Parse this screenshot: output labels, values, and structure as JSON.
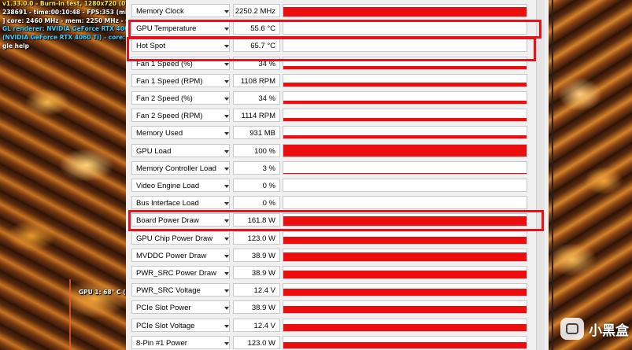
{
  "overlay": {
    "lines": [
      {
        "text": "v1.33.0.0 - Burn-in test, 1280x720 (0X MS",
        "color": "yellow"
      },
      {
        "text": "238691 - time:00:10:48 - FPS:353 (min:28",
        "color": "white"
      },
      {
        "text": "] core: 2460 MHz - mem: 2250 MHz - GPU",
        "color": "white"
      },
      {
        "text": "GL renderer: NVIDIA GeForce RTX 4060 Ti",
        "color": "cyan"
      },
      {
        "text": "(NVIDIA GeForce RTX 4060 Ti) - core: 246",
        "color": "cyan"
      },
      {
        "text": "gle help",
        "color": "white"
      }
    ],
    "gpu_readout": "GPU 1: 68° C (m"
  },
  "sensors": [
    {
      "name": "Memory Clock",
      "value": "2250.2 MHz",
      "level": 0.82
    },
    {
      "name": "GPU Temperature",
      "value": "55.6 °C",
      "level": 0.0
    },
    {
      "name": "Hot Spot",
      "value": "65.7 °C",
      "level": 0.0
    },
    {
      "name": "Fan 1 Speed (%)",
      "value": "34 %",
      "level": 0.22
    },
    {
      "name": "Fan 1 Speed (RPM)",
      "value": "1108 RPM",
      "level": 0.3
    },
    {
      "name": "Fan 2 Speed (%)",
      "value": "34 %",
      "level": 0.3
    },
    {
      "name": "Fan 2 Speed (RPM)",
      "value": "1114 RPM",
      "level": 0.3
    },
    {
      "name": "Memory Used",
      "value": "931 MB",
      "level": 0.3
    },
    {
      "name": "GPU Load",
      "value": "100 %",
      "level": 1.0
    },
    {
      "name": "Memory Controller Load",
      "value": "3 %",
      "level": 0.08
    },
    {
      "name": "Video Engine Load",
      "value": "0 %",
      "level": 0.0
    },
    {
      "name": "Bus Interface Load",
      "value": "0 %",
      "level": 0.0
    },
    {
      "name": "Board Power Draw",
      "value": "161.8 W",
      "level": 0.8
    },
    {
      "name": "GPU Chip Power Draw",
      "value": "123.0 W",
      "level": 0.6
    },
    {
      "name": "MVDDC Power Draw",
      "value": "38.9 W",
      "level": 0.7
    },
    {
      "name": "PWR_SRC Power Draw",
      "value": "38.9 W",
      "level": 0.7
    },
    {
      "name": "PWR_SRC Voltage",
      "value": "12.4 V",
      "level": 0.6
    },
    {
      "name": "PCIe Slot Power",
      "value": "38.9 W",
      "level": 0.6
    },
    {
      "name": "PCIe Slot Voltage",
      "value": "12.4 V",
      "level": 0.6
    },
    {
      "name": "8-Pin #1 Power",
      "value": "123.0 W",
      "level": 0.55
    }
  ],
  "highlighted_sensors": [
    "GPU Temperature",
    "Hot Spot",
    "Board Power Draw"
  ],
  "watermark": {
    "text": "小黑盒",
    "icon": "xiaoheihe-logo-icon"
  },
  "colors": {
    "bar": "#ec0e0e",
    "highlight": "#e8121c",
    "overlay_yellow": "#ffe83a",
    "overlay_cyan": "#3ad0ff"
  }
}
